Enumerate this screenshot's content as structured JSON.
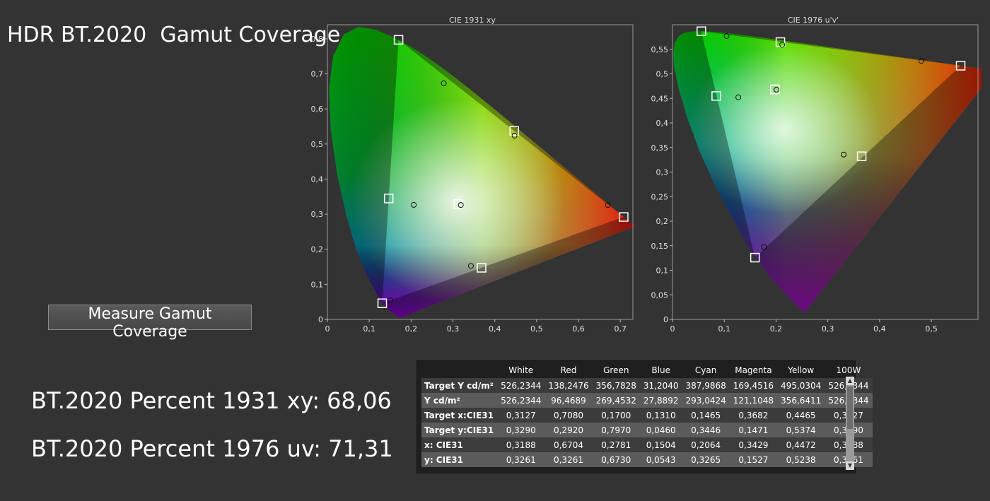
{
  "title": "HDR BT.2020  Gamut Coverage",
  "measure_button": "Measure Gamut Coverage",
  "pct1931": "BT.2020 Percent 1931 xy: 68,06",
  "pct1976": "BT.2020 Percent 1976 uv: 71,31",
  "charts": {
    "xy": {
      "title": "CIE 1931 xy",
      "xticks": [
        "0",
        "0,1",
        "0,2",
        "0,3",
        "0,4",
        "0,5",
        "0,6",
        "0,7"
      ],
      "yticks": [
        "0",
        "0,1",
        "0,2",
        "0,3",
        "0,4",
        "0,5",
        "0,6",
        "0,7",
        "0,8"
      ]
    },
    "uv": {
      "title": "CIE 1976 u'v'",
      "xticks": [
        "0",
        "0,1",
        "0,2",
        "0,3",
        "0,4",
        "0,5"
      ],
      "yticks": [
        "0",
        "0,05",
        "0,1",
        "0,15",
        "0,2",
        "0,25",
        "0,3",
        "0,35",
        "0,4",
        "0,45",
        "0,5",
        "0,55"
      ]
    }
  },
  "chart_data": [
    {
      "type": "scatter",
      "title": "CIE 1931 xy",
      "xlim": [
        0,
        0.73
      ],
      "ylim": [
        0,
        0.84
      ],
      "series": [
        {
          "marker": "square",
          "x": [
            0.3127,
            0.708,
            0.17,
            0.131,
            0.1465,
            0.3682,
            0.4465
          ],
          "y": [
            0.329,
            0.292,
            0.797,
            0.046,
            0.3446,
            0.1471,
            0.5374
          ]
        },
        {
          "marker": "circle",
          "x": [
            0.3188,
            0.6704,
            0.2781,
            0.1504,
            0.2064,
            0.3429,
            0.4472
          ],
          "y": [
            0.3261,
            0.3261,
            0.673,
            0.0543,
            0.3265,
            0.1527,
            0.5238
          ]
        }
      ]
    },
    {
      "type": "scatter",
      "title": "CIE 1976 u'v'",
      "xlim": [
        0,
        0.59
      ],
      "ylim": [
        0,
        0.6
      ],
      "series": [
        {
          "marker": "square",
          "x": [
            0.1978,
            0.5566,
            0.0557,
            0.1593,
            0.0845,
            0.3654,
            0.2084,
            0.1978
          ],
          "y": [
            0.4683,
            0.5165,
            0.5868,
            0.1258,
            0.4549,
            0.3322,
            0.5647,
            0.4683
          ]
        },
        {
          "marker": "circle",
          "x": [
            0.2009,
            0.4805,
            0.1045,
            0.1767,
            0.1271,
            0.3306,
            0.2119
          ],
          "y": [
            0.4678,
            0.5265,
            0.5769,
            0.1475,
            0.4522,
            0.3356,
            0.5594
          ]
        }
      ]
    }
  ],
  "table": {
    "headers": [
      "",
      "White",
      "Red",
      "Green",
      "Blue",
      "Cyan",
      "Magenta",
      "Yellow",
      "100W"
    ],
    "rows": [
      [
        "Target Y cd/m²",
        "526,2344",
        "138,2476",
        "356,7828",
        "31,2040",
        "387,9868",
        "169,4516",
        "495,0304",
        "526,2344"
      ],
      [
        "Y cd/m²",
        "526,2344",
        "96,4689",
        "269,4532",
        "27,8892",
        "293,0424",
        "121,1048",
        "356,6411",
        "526,2344"
      ],
      [
        "Target x:CIE31",
        "0,3127",
        "0,7080",
        "0,1700",
        "0,1310",
        "0,1465",
        "0,3682",
        "0,4465",
        "0,3127"
      ],
      [
        "Target y:CIE31",
        "0,3290",
        "0,2920",
        "0,7970",
        "0,0460",
        "0,3446",
        "0,1471",
        "0,5374",
        "0,3290"
      ],
      [
        "x: CIE31",
        "0,3188",
        "0,6704",
        "0,2781",
        "0,1504",
        "0,2064",
        "0,3429",
        "0,4472",
        "0,3188"
      ],
      [
        "y: CIE31",
        "0,3261",
        "0,3261",
        "0,6730",
        "0,0543",
        "0,3265",
        "0,1527",
        "0,5238",
        "0,3261"
      ]
    ]
  }
}
